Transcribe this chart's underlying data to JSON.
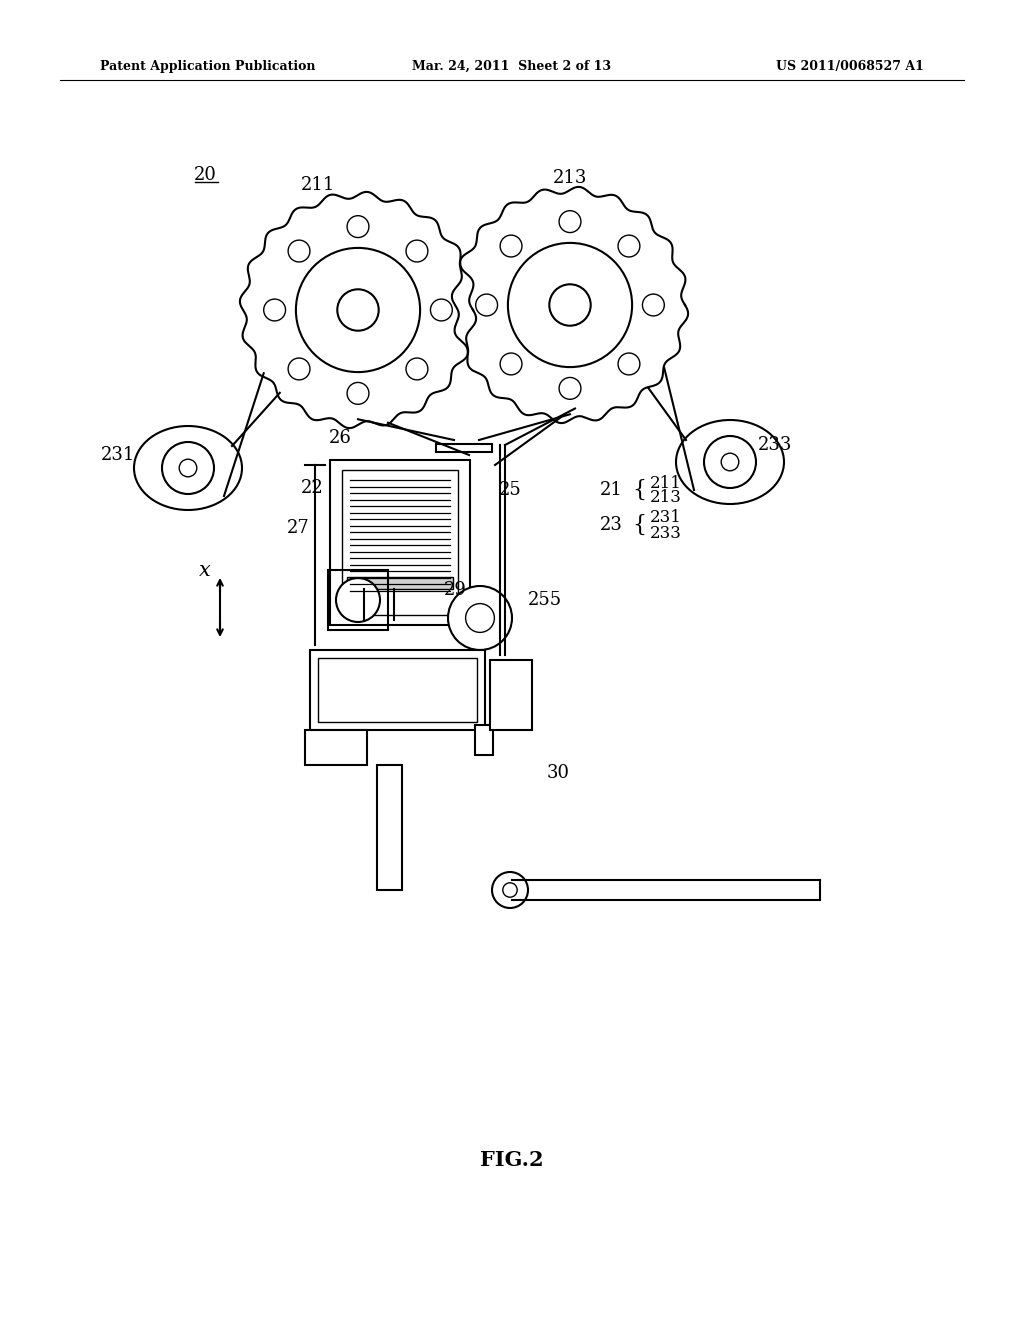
{
  "bg_color": "#ffffff",
  "header_left": "Patent Application Publication",
  "header_mid": "Mar. 24, 2011  Sheet 2 of 13",
  "header_right": "US 2011/0068527 A1",
  "fig_label": "FIG.2"
}
